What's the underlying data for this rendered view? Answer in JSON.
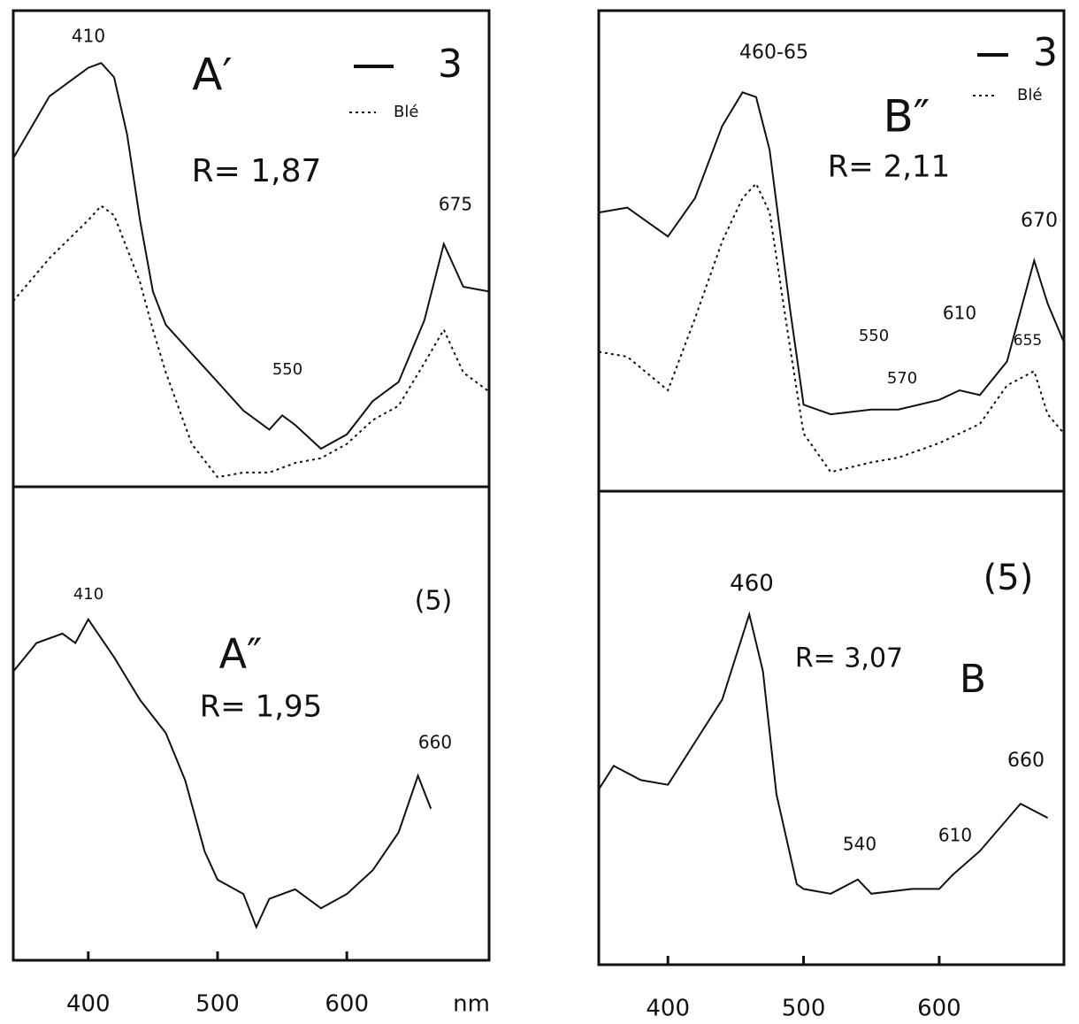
{
  "chart_data": [
    {
      "type": "line",
      "title": "A′",
      "x": [
        342,
        370,
        385,
        400,
        410,
        420,
        430,
        440,
        450,
        460,
        480,
        500,
        520,
        540,
        550,
        560,
        580,
        600,
        620,
        640,
        660,
        675,
        690,
        710
      ],
      "series": [
        {
          "name": "3",
          "color": "#111111",
          "style": "solid",
          "values": [
            69,
            82,
            85,
            88,
            89,
            86,
            74,
            56,
            41,
            34,
            28,
            22,
            16,
            12,
            15,
            13,
            8,
            11,
            18,
            22,
            35,
            51,
            42,
            41
          ]
        },
        {
          "name": "Blé",
          "color": "#111111",
          "style": "dotted",
          "values": [
            39,
            48,
            52,
            56,
            59,
            57,
            50,
            43,
            33,
            24,
            9,
            2,
            3,
            3,
            4,
            5,
            6,
            9,
            14,
            17,
            26,
            33,
            24,
            20
          ]
        }
      ],
      "annotations": [
        "R= 1,87",
        "410",
        "675",
        "550"
      ],
      "xlim": [
        342,
        710
      ],
      "ylim": [
        0,
        100
      ]
    },
    {
      "type": "line",
      "title": "B″",
      "x": [
        349,
        370,
        400,
        420,
        440,
        455,
        465,
        475,
        490,
        500,
        520,
        550,
        570,
        600,
        615,
        630,
        650,
        670,
        680,
        692
      ],
      "series": [
        {
          "name": "3",
          "color": "#111111",
          "style": "solid",
          "values": [
            58,
            59,
            53,
            61,
            76,
            83,
            82,
            71,
            38,
            18,
            16,
            17,
            17,
            19,
            21,
            20,
            27,
            48,
            39,
            31
          ]
        },
        {
          "name": "Blé",
          "color": "#111111",
          "style": "dotted",
          "values": [
            29,
            28,
            21,
            36,
            52,
            61,
            64,
            58,
            30,
            12,
            4,
            6,
            7,
            10,
            12,
            14,
            22,
            25,
            16,
            12
          ]
        }
      ],
      "annotations": [
        "R= 2,11",
        "460-65",
        "670",
        "550",
        "570",
        "610",
        "655"
      ],
      "xlim": [
        349,
        692
      ],
      "ylim": [
        0,
        100
      ]
    },
    {
      "type": "line",
      "title": "A″",
      "x": [
        342,
        360,
        380,
        390,
        400,
        410,
        420,
        440,
        460,
        475,
        490,
        500,
        520,
        530,
        540,
        560,
        580,
        600,
        620,
        640,
        655,
        665
      ],
      "series": [
        {
          "color": "#111111",
          "style": "solid",
          "values": [
            61,
            67,
            69,
            67,
            72,
            68,
            64,
            55,
            48,
            38,
            23,
            17,
            14,
            7,
            13,
            15,
            11,
            14,
            19,
            27,
            39,
            32
          ]
        }
      ],
      "annotations": [
        "(5)",
        "R= 1,95",
        "410",
        "660"
      ],
      "xlabel": "nm",
      "xlim": [
        342,
        710
      ],
      "ylim": [
        0,
        100
      ],
      "xticks": [
        400,
        500,
        600
      ]
    },
    {
      "type": "line",
      "title": "B",
      "x": [
        349,
        360,
        380,
        400,
        420,
        440,
        460,
        470,
        480,
        495,
        500,
        520,
        540,
        550,
        580,
        600,
        610,
        630,
        660,
        680
      ],
      "series": [
        {
          "color": "#111111",
          "style": "solid",
          "values": [
            37,
            42,
            39,
            38,
            47,
            56,
            74,
            62,
            36,
            17,
            16,
            15,
            18,
            15,
            16,
            16,
            19,
            24,
            34,
            31
          ]
        }
      ],
      "annotations": [
        "(5)",
        "R= 3,07",
        "460",
        "540",
        "610",
        "660"
      ],
      "xlim": [
        349,
        692
      ],
      "ylim": [
        0,
        100
      ],
      "xticks": [
        400,
        500,
        600
      ]
    }
  ]
}
